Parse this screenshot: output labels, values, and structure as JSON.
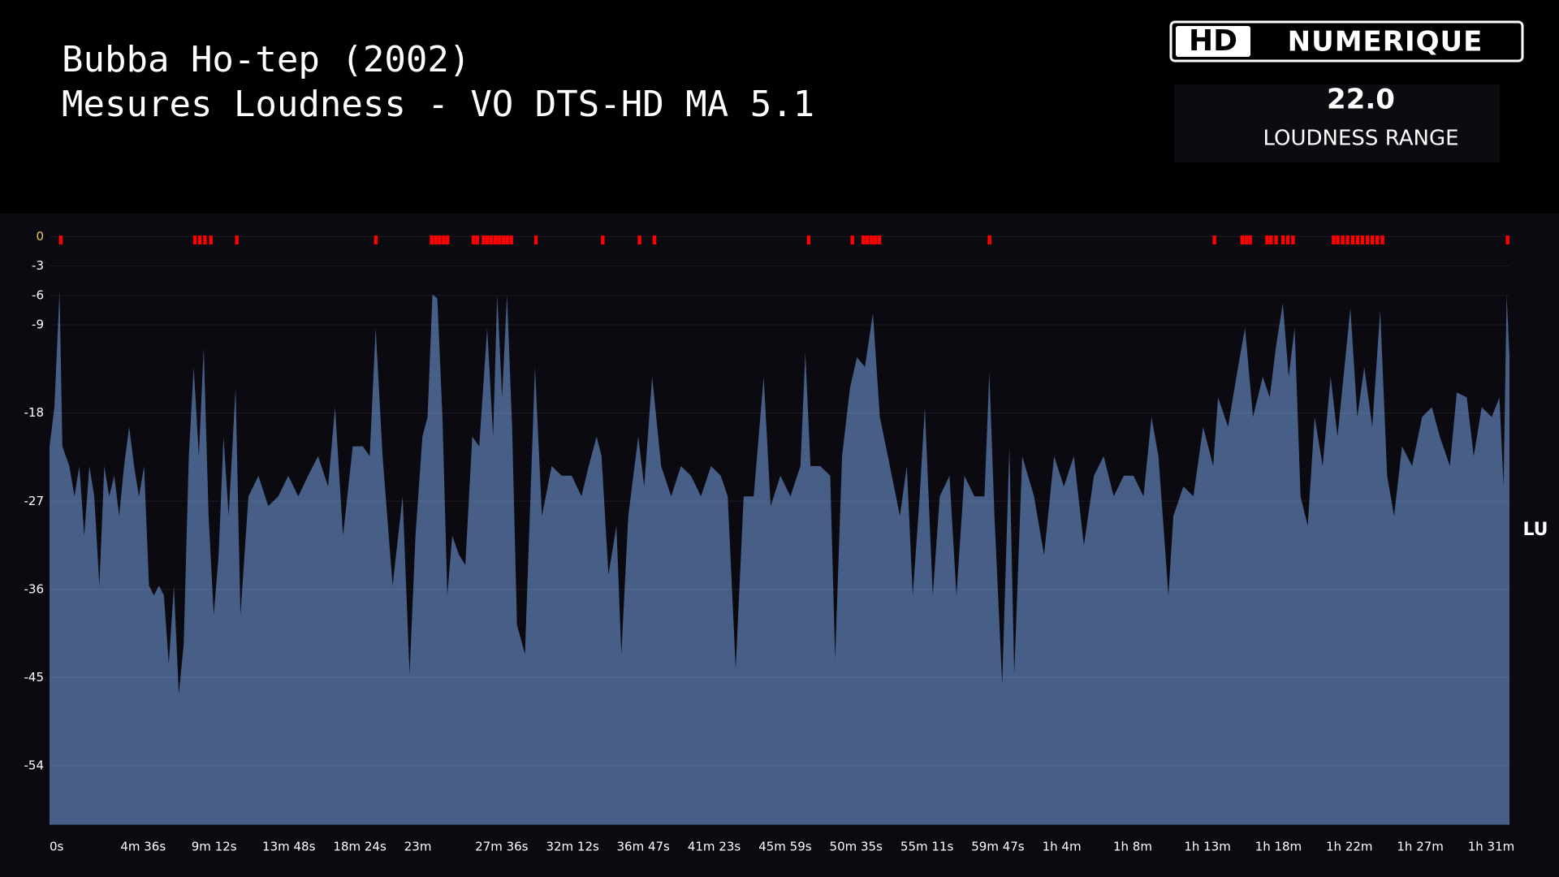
{
  "chart_data": {
    "type": "area",
    "title": "Bubba Ho-tep (2002)",
    "subtitle": "Mesures Loudness - VO DTS-HD MA 5.1",
    "y_label": "LU",
    "color": "#475e87",
    "marker_color": "#ff0000",
    "zero_tick_color": "#e8c46a",
    "grid": true,
    "xlim": [
      0,
      5681
    ],
    "ylim": [
      -60,
      1
    ],
    "yticks": [
      0,
      -3,
      -6,
      -9,
      -18,
      -27,
      -36,
      -45,
      -54
    ],
    "xticks": [
      {
        "value": 0,
        "label": "0s"
      },
      {
        "value": 276,
        "label": "4m 36s"
      },
      {
        "value": 552,
        "label": "9m 12s"
      },
      {
        "value": 828,
        "label": "13m 48s"
      },
      {
        "value": 1104,
        "label": "18m 24s"
      },
      {
        "value": 1380,
        "label": "23m"
      },
      {
        "value": 1656,
        "label": "27m 36s"
      },
      {
        "value": 1932,
        "label": "32m 12s"
      },
      {
        "value": 2207,
        "label": "36m 47s"
      },
      {
        "value": 2483,
        "label": "41m 23s"
      },
      {
        "value": 2759,
        "label": "45m 59s"
      },
      {
        "value": 3035,
        "label": "50m 35s"
      },
      {
        "value": 3311,
        "label": "55m 11s"
      },
      {
        "value": 3587,
        "label": "59m 47s"
      },
      {
        "value": 3863,
        "label": "1h 4m"
      },
      {
        "value": 4139,
        "label": "1h 8m"
      },
      {
        "value": 4415,
        "label": "1h 13m"
      },
      {
        "value": 4691,
        "label": "1h 18m"
      },
      {
        "value": 4967,
        "label": "1h 22m"
      },
      {
        "value": 5243,
        "label": "1h 27m"
      },
      {
        "value": 5519,
        "label": "1h 31m"
      }
    ],
    "x": [
      0,
      19,
      39,
      50,
      77,
      97,
      116,
      135,
      155,
      174,
      194,
      213,
      232,
      252,
      271,
      290,
      310,
      329,
      348,
      368,
      387,
      406,
      426,
      445,
      464,
      484,
      503,
      522,
      542,
      561,
      581,
      600,
      619,
      639,
      658,
      677,
      697,
      724,
      743,
      774,
      813,
      851,
      890,
      929,
      968,
      1006,
      1045,
      1084,
      1111,
      1142,
      1180,
      1219,
      1246,
      1269,
      1296,
      1335,
      1374,
      1401,
      1424,
      1451,
      1471,
      1490,
      1509,
      1529,
      1548,
      1567,
      1594,
      1618,
      1645,
      1672,
      1703,
      1726,
      1742,
      1761,
      1780,
      1800,
      1819,
      1850,
      1889,
      1916,
      1954,
      1993,
      2032,
      2070,
      2098,
      2129,
      2148,
      2175,
      2206,
      2225,
      2252,
      2291,
      2314,
      2345,
      2380,
      2419,
      2457,
      2496,
      2535,
      2574,
      2612,
      2639,
      2670,
      2701,
      2740,
      2779,
      2806,
      2844,
      2883,
      2922,
      2941,
      2961,
      2999,
      3038,
      3057,
      3084,
      3115,
      3142,
      3173,
      3204,
      3231,
      3270,
      3309,
      3336,
      3359,
      3386,
      3406,
      3437,
      3464,
      3502,
      3529,
      3560,
      3599,
      3638,
      3657,
      3677,
      3707,
      3735,
      3754,
      3785,
      3831,
      3870,
      3909,
      3947,
      3986,
      4025,
      4064,
      4102,
      4141,
      4180,
      4218,
      4257,
      4288,
      4315,
      4354,
      4373,
      4412,
      4451,
      4489,
      4528,
      4547,
      4586,
      4625,
      4652,
      4683,
      4721,
      4748,
      4772,
      4799,
      4822,
      4845,
      4868,
      4896,
      4923,
      4954,
      4985,
      5012,
      5039,
      5062,
      5089,
      5116,
      5147,
      5178,
      5205,
      5232,
      5263,
      5302,
      5341,
      5379,
      5410,
      5449,
      5476,
      5515,
      5542,
      5573,
      5612,
      5642,
      5658,
      5670,
      5681
    ],
    "values": [
      -21.4,
      -17.4,
      -5.5,
      -21.4,
      -23.4,
      -26.5,
      -23.4,
      -30.5,
      -23.4,
      -26.5,
      -35.6,
      -23.4,
      -26.5,
      -24.4,
      -28.5,
      -23.4,
      -19.4,
      -23.4,
      -26.5,
      -23.4,
      -35.6,
      -36.6,
      -35.6,
      -36.6,
      -43.6,
      -35.6,
      -46.7,
      -41.6,
      -22.4,
      -13.3,
      -22.4,
      -11.3,
      -28.5,
      -38.6,
      -32.5,
      -20.4,
      -28.5,
      -15.4,
      -38.6,
      -26.5,
      -24.4,
      -27.5,
      -26.5,
      -24.4,
      -26.5,
      -24.4,
      -22.4,
      -25.5,
      -17.4,
      -30.5,
      -21.4,
      -21.4,
      -22.4,
      -9.3,
      -22.4,
      -35.6,
      -26.5,
      -44.6,
      -30.5,
      -20.4,
      -18.4,
      -5.9,
      -6.3,
      -18.4,
      -36.6,
      -30.5,
      -32.5,
      -33.5,
      -20.4,
      -21.4,
      -9.3,
      -20.4,
      -5.9,
      -16.4,
      -5.9,
      -19.4,
      -39.6,
      -42.6,
      -13.3,
      -28.5,
      -23.4,
      -24.4,
      -24.4,
      -26.5,
      -23.4,
      -20.4,
      -22.4,
      -34.5,
      -29.5,
      -42.6,
      -28.5,
      -20.4,
      -25.5,
      -14.3,
      -23.4,
      -26.5,
      -23.4,
      -24.4,
      -26.5,
      -23.4,
      -24.4,
      -26.5,
      -44.1,
      -26.5,
      -26.5,
      -14.3,
      -27.5,
      -24.4,
      -26.5,
      -23.4,
      -11.8,
      -23.4,
      -23.4,
      -24.4,
      -43.1,
      -22.4,
      -15.4,
      -12.3,
      -13.3,
      -7.8,
      -18.4,
      -23.4,
      -28.5,
      -23.4,
      -36.6,
      -26.5,
      -17.4,
      -36.6,
      -26.5,
      -24.4,
      -36.6,
      -24.4,
      -26.5,
      -26.5,
      -13.8,
      -28.5,
      -45.7,
      -21.4,
      -44.6,
      -22.4,
      -26.5,
      -32.5,
      -22.4,
      -25.5,
      -22.4,
      -31.5,
      -24.4,
      -22.4,
      -26.5,
      -24.4,
      -24.4,
      -26.5,
      -18.4,
      -22.4,
      -36.6,
      -28.5,
      -25.5,
      -26.5,
      -19.4,
      -23.4,
      -16.4,
      -19.4,
      -13.3,
      -9.3,
      -18.4,
      -14.3,
      -16.4,
      -11.3,
      -6.8,
      -14.3,
      -9.3,
      -26.5,
      -29.5,
      -18.4,
      -23.4,
      -14.3,
      -20.4,
      -13.3,
      -7.3,
      -18.4,
      -13.3,
      -19.4,
      -7.5,
      -24.4,
      -28.5,
      -21.4,
      -23.4,
      -18.4,
      -17.4,
      -20.4,
      -23.4,
      -15.9,
      -16.4,
      -22.4,
      -17.4,
      -18.4,
      -16.4,
      -25.5,
      -5.9,
      -12.3
    ],
    "clip_markers": [
      43,
      565,
      584,
      604,
      627,
      728,
      1269,
      1486,
      1502,
      1517,
      1533,
      1548,
      1649,
      1664,
      1688,
      1703,
      1718,
      1734,
      1749,
      1765,
      1780,
      1796,
      1892,
      2152,
      2295,
      2353,
      2953,
      3123,
      3166,
      3181,
      3197,
      3212,
      3228,
      3657,
      4532,
      4640,
      4656,
      4671,
      4737,
      4752,
      4772,
      4799,
      4818,
      4838,
      4996,
      5012,
      5031,
      5050,
      5070,
      5089,
      5108,
      5128,
      5147,
      5166,
      5186,
      5673
    ]
  },
  "logo": {
    "mark": "HD",
    "brand": "NUMERIQUE"
  },
  "stat": {
    "value": "22.0",
    "label": "LOUDNESS RANGE"
  }
}
